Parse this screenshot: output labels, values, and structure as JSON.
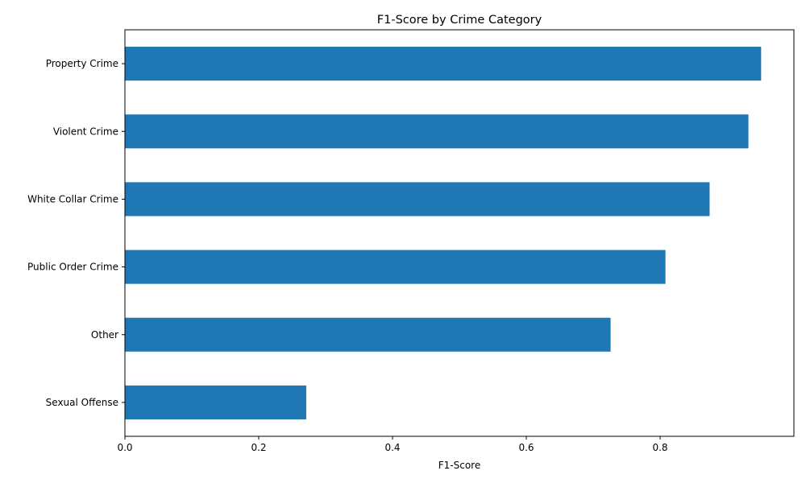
{
  "chart_data": {
    "type": "bar",
    "orientation": "horizontal",
    "title": "F1-Score by Crime Category",
    "xlabel": "F1-Score",
    "ylabel": "",
    "categories": [
      "Property Crime",
      "Violent Crime",
      "White Collar Crime",
      "Public Order Crime",
      "Other",
      "Sexual Offense"
    ],
    "values": [
      0.951,
      0.932,
      0.874,
      0.808,
      0.726,
      0.271
    ],
    "xlim": [
      0,
      1.0
    ],
    "xticks": [
      0.0,
      0.2,
      0.4,
      0.6,
      0.8
    ],
    "xtick_labels": [
      "0.0",
      "0.2",
      "0.4",
      "0.6",
      "0.8"
    ],
    "grid": false,
    "legend": "none",
    "bar_color": "#1f77b4"
  }
}
